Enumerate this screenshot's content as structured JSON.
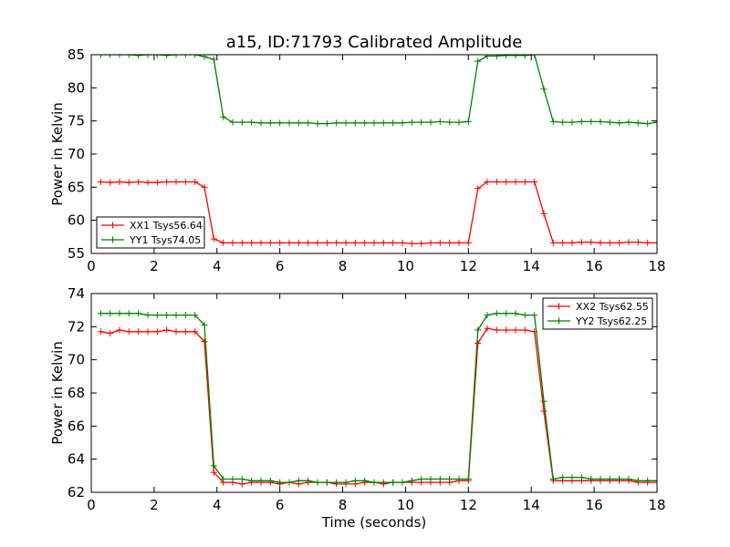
{
  "chart_data": [
    {
      "type": "line",
      "title": "a15, ID:71793 Calibrated Amplitude",
      "xlabel": "",
      "ylabel": "Power in Kelvin",
      "xlim": [
        0,
        18
      ],
      "ylim": [
        55,
        85
      ],
      "xticks": [
        "0",
        "2",
        "4",
        "6",
        "8",
        "10",
        "12",
        "14",
        "16",
        "18"
      ],
      "yticks": [
        "55",
        "60",
        "65",
        "70",
        "75",
        "80",
        "85"
      ],
      "legend_position": "lower-left",
      "marker": "+",
      "x": [
        0.3,
        0.6,
        0.9,
        1.2,
        1.5,
        1.8,
        2.1,
        2.4,
        2.7,
        3.0,
        3.3,
        3.6,
        3.9,
        4.2,
        4.5,
        4.8,
        5.1,
        5.4,
        5.7,
        6.0,
        6.3,
        6.6,
        6.9,
        7.2,
        7.5,
        7.8,
        8.1,
        8.4,
        8.7,
        9.0,
        9.3,
        9.6,
        9.9,
        10.2,
        10.5,
        10.8,
        11.1,
        11.4,
        11.7,
        12.0,
        12.3,
        12.6,
        12.9,
        13.2,
        13.5,
        13.8,
        14.1,
        14.4,
        14.7,
        15.0,
        15.3,
        15.6,
        15.9,
        16.2,
        16.5,
        16.8,
        17.1,
        17.4,
        17.7,
        18.0
      ],
      "series": [
        {
          "name": "XX1 Tsys56.64",
          "color": "#ff0000",
          "values": [
            65.8,
            65.7,
            65.8,
            65.7,
            65.8,
            65.7,
            65.7,
            65.8,
            65.8,
            65.8,
            65.8,
            65.0,
            57.2,
            56.6,
            56.6,
            56.6,
            56.6,
            56.6,
            56.6,
            56.6,
            56.6,
            56.6,
            56.6,
            56.6,
            56.6,
            56.6,
            56.6,
            56.6,
            56.6,
            56.6,
            56.6,
            56.6,
            56.6,
            56.5,
            56.5,
            56.6,
            56.6,
            56.6,
            56.6,
            56.6,
            64.8,
            65.8,
            65.8,
            65.8,
            65.8,
            65.8,
            65.8,
            61.0,
            56.6,
            56.6,
            56.6,
            56.7,
            56.7,
            56.6,
            56.6,
            56.6,
            56.7,
            56.7,
            56.6,
            56.6
          ]
        },
        {
          "name": "YY1 Tsys74.05",
          "color": "#008000",
          "values": [
            85.0,
            85.0,
            85.0,
            85.0,
            84.9,
            85.0,
            85.0,
            84.9,
            85.0,
            85.0,
            85.0,
            84.7,
            84.3,
            75.6,
            74.8,
            74.8,
            74.8,
            74.7,
            74.7,
            74.7,
            74.7,
            74.7,
            74.7,
            74.6,
            74.6,
            74.7,
            74.7,
            74.7,
            74.7,
            74.7,
            74.7,
            74.7,
            74.7,
            74.8,
            74.8,
            74.8,
            74.9,
            74.8,
            74.8,
            74.9,
            84.0,
            84.8,
            84.8,
            84.9,
            84.9,
            84.9,
            85.0,
            79.8,
            74.9,
            74.8,
            74.8,
            74.9,
            74.9,
            74.9,
            74.8,
            74.7,
            74.8,
            74.7,
            74.6,
            74.8
          ]
        }
      ]
    },
    {
      "type": "line",
      "title": "",
      "xlabel": "Time (seconds)",
      "ylabel": "Power in Kelvin",
      "xlim": [
        0,
        18
      ],
      "ylim": [
        62,
        74
      ],
      "xticks": [
        "0",
        "2",
        "4",
        "6",
        "8",
        "10",
        "12",
        "14",
        "16",
        "18"
      ],
      "yticks": [
        "62",
        "64",
        "66",
        "68",
        "70",
        "72",
        "74"
      ],
      "legend_position": "upper-right",
      "marker": "+",
      "x": [
        0.3,
        0.6,
        0.9,
        1.2,
        1.5,
        1.8,
        2.1,
        2.4,
        2.7,
        3.0,
        3.3,
        3.6,
        3.9,
        4.2,
        4.5,
        4.8,
        5.1,
        5.4,
        5.7,
        6.0,
        6.3,
        6.6,
        6.9,
        7.2,
        7.5,
        7.8,
        8.1,
        8.4,
        8.7,
        9.0,
        9.3,
        9.6,
        9.9,
        10.2,
        10.5,
        10.8,
        11.1,
        11.4,
        11.7,
        12.0,
        12.3,
        12.6,
        12.9,
        13.2,
        13.5,
        13.8,
        14.1,
        14.4,
        14.7,
        15.0,
        15.3,
        15.6,
        15.9,
        16.2,
        16.5,
        16.8,
        17.1,
        17.4,
        17.7,
        18.0
      ],
      "series": [
        {
          "name": "XX2 Tsys62.55",
          "color": "#ff0000",
          "values": [
            71.7,
            71.6,
            71.8,
            71.7,
            71.7,
            71.7,
            71.7,
            71.8,
            71.7,
            71.7,
            71.7,
            71.1,
            63.2,
            62.6,
            62.6,
            62.5,
            62.6,
            62.6,
            62.6,
            62.5,
            62.6,
            62.5,
            62.6,
            62.6,
            62.6,
            62.5,
            62.5,
            62.5,
            62.6,
            62.6,
            62.5,
            62.6,
            62.6,
            62.6,
            62.6,
            62.6,
            62.6,
            62.6,
            62.7,
            62.7,
            71.0,
            71.9,
            71.8,
            71.8,
            71.8,
            71.8,
            71.7,
            66.9,
            62.7,
            62.7,
            62.7,
            62.7,
            62.7,
            62.7,
            62.7,
            62.7,
            62.7,
            62.6,
            62.6,
            62.6
          ]
        },
        {
          "name": "YY2 Tsys62.25",
          "color": "#008000",
          "values": [
            72.8,
            72.8,
            72.8,
            72.8,
            72.8,
            72.7,
            72.7,
            72.7,
            72.7,
            72.7,
            72.7,
            72.1,
            63.6,
            62.8,
            62.8,
            62.8,
            62.7,
            62.7,
            62.7,
            62.6,
            62.6,
            62.7,
            62.7,
            62.6,
            62.6,
            62.6,
            62.6,
            62.7,
            62.7,
            62.6,
            62.6,
            62.6,
            62.6,
            62.7,
            62.8,
            62.8,
            62.8,
            62.8,
            62.8,
            62.8,
            71.8,
            72.7,
            72.8,
            72.8,
            72.8,
            72.7,
            72.7,
            67.5,
            62.8,
            62.9,
            62.9,
            62.9,
            62.8,
            62.8,
            62.8,
            62.8,
            62.8,
            62.7,
            62.7,
            62.7
          ]
        }
      ]
    }
  ]
}
